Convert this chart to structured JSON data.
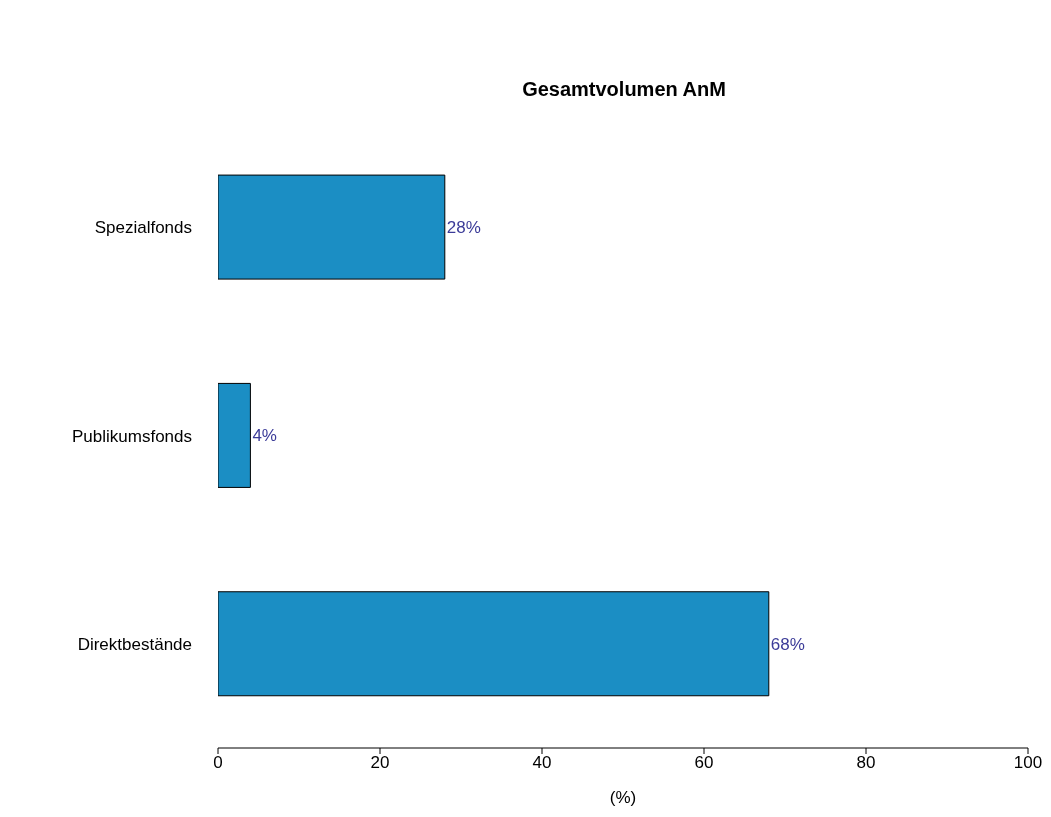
{
  "chart_data": {
    "type": "bar",
    "orientation": "horizontal",
    "title": "Gesamtvolumen AnM",
    "xlabel": "(%)",
    "categories": [
      "Spezialfonds",
      "Publikumsfonds",
      "Direktbestände"
    ],
    "values": [
      28,
      4,
      68
    ],
    "value_labels": [
      "28%",
      "4%",
      "68%"
    ],
    "color": "#1b8ec4",
    "xlim": [
      0,
      100
    ],
    "xticks": [
      0,
      20,
      40,
      60,
      80,
      100
    ],
    "grid": false,
    "legend": false
  }
}
